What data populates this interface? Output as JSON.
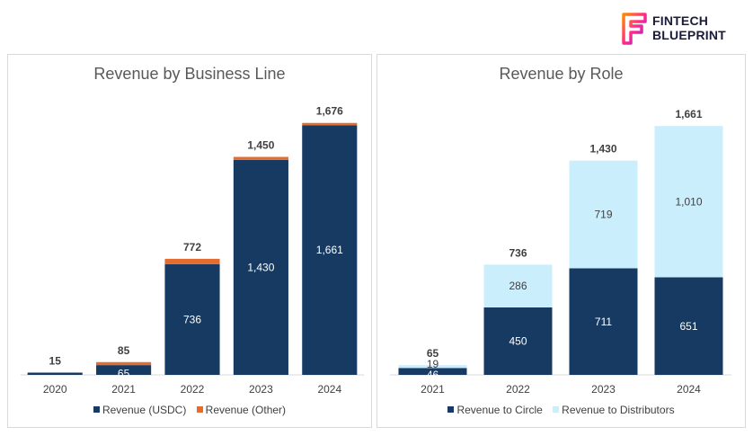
{
  "brand": {
    "line1": "FINTECH",
    "line2": "BLUEPRINT"
  },
  "colors": {
    "dark": "#173a62",
    "orange": "#e46c2f",
    "light": "#cbeefd"
  },
  "chart_data": [
    {
      "type": "bar",
      "stacked": true,
      "title": "Revenue by Business Line",
      "categories": [
        "2020",
        "2021",
        "2022",
        "2023",
        "2024"
      ],
      "series": [
        {
          "name": "Revenue (USDC)",
          "color": "#173a62",
          "values": [
            15,
            65,
            736,
            1430,
            1661
          ],
          "labels": [
            "",
            "65",
            "736",
            "1,430",
            "1,661"
          ]
        },
        {
          "name": "Revenue (Other)",
          "color": "#e46c2f",
          "values": [
            0,
            20,
            36,
            20,
            15
          ]
        }
      ],
      "totals": [
        "15",
        "85",
        "772",
        "1,450",
        "1,676"
      ],
      "legend": "bottom",
      "ylim": [
        0,
        1800
      ]
    },
    {
      "type": "bar",
      "stacked": true,
      "title": "Revenue by Role",
      "categories": [
        "2021",
        "2022",
        "2023",
        "2024"
      ],
      "series": [
        {
          "name": "Revenue to Circle",
          "color": "#173a62",
          "values": [
            46,
            450,
            711,
            651
          ],
          "labels": [
            "46",
            "450",
            "711",
            "651"
          ]
        },
        {
          "name": "Revenue to Distributors",
          "color": "#cbeefd",
          "values": [
            19,
            286,
            719,
            1010
          ],
          "labels": [
            "19",
            "286",
            "719",
            "1,010"
          ]
        }
      ],
      "totals": [
        "65",
        "736",
        "1,430",
        "1,661"
      ],
      "legend": "bottom",
      "ylim": [
        0,
        1800
      ]
    }
  ]
}
